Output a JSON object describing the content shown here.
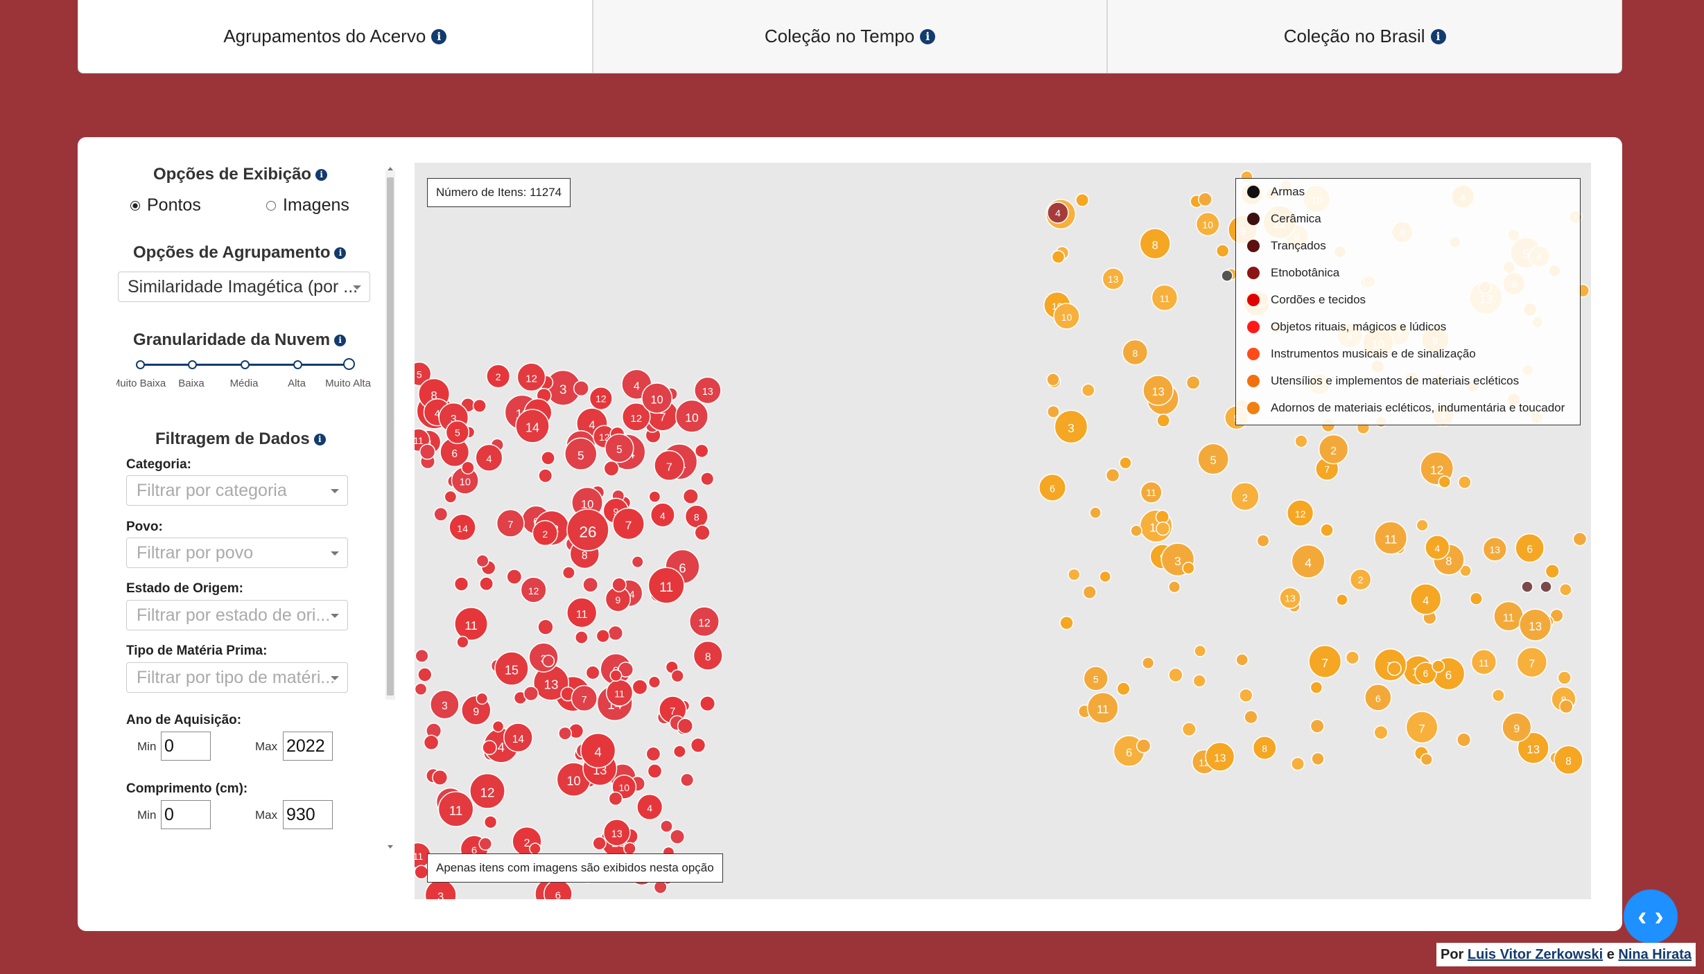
{
  "tabs": [
    {
      "label": "Agrupamentos do Acervo",
      "active": true
    },
    {
      "label": "Coleção no Tempo",
      "active": false
    },
    {
      "label": "Coleção no Brasil",
      "active": false
    }
  ],
  "sidebar": {
    "display_options": {
      "title": "Opções de Exibição",
      "points_label": "Pontos",
      "images_label": "Imagens",
      "selected": "Pontos"
    },
    "grouping": {
      "title": "Opções de Agrupamento",
      "value": "Similaridade Imagética (por ..."
    },
    "granularity": {
      "title": "Granularidade da Nuvem",
      "stops": [
        "Muito Baixa",
        "Baixa",
        "Média",
        "Alta",
        "Muito Alta"
      ],
      "selected": "Muito Alta"
    },
    "filters": {
      "title": "Filtragem de Dados",
      "categoria": {
        "label": "Categoria:",
        "placeholder": "Filtrar por categoria"
      },
      "povo": {
        "label": "Povo:",
        "placeholder": "Filtrar por povo"
      },
      "estado": {
        "label": "Estado de Origem:",
        "placeholder": "Filtrar por estado de ori..."
      },
      "materia": {
        "label": "Tipo de Matéria Prima:",
        "placeholder": "Filtrar por tipo de matéri..."
      },
      "ano": {
        "label": "Ano de Aquisição:",
        "min_label": "Min",
        "min": "0",
        "max_label": "Max",
        "max": "2022"
      },
      "comprimento": {
        "label": "Comprimento (cm):",
        "min_label": "Min",
        "min": "0",
        "max_label": "Max",
        "max": "930"
      }
    }
  },
  "map": {
    "item_count": "Número de Itens: 11274",
    "note": "Apenas itens com imagens são exibidos nesta opção",
    "legend": [
      {
        "label": "Armas",
        "color": "#111111"
      },
      {
        "label": "Cerâmica",
        "color": "#3d0f0f"
      },
      {
        "label": "Trançados",
        "color": "#5c1010"
      },
      {
        "label": "Etnobotânica",
        "color": "#8c1414"
      },
      {
        "label": "Cordões e tecidos",
        "color": "#e00000"
      },
      {
        "label": "Objetos rituais, mágicos e lúdicos",
        "color": "#ff1a1a"
      },
      {
        "label": "Instrumentos musicais e de sinalização",
        "color": "#ff4a1a"
      },
      {
        "label": "Utensílios e implementos de materiais ecléticos",
        "color": "#f07010"
      },
      {
        "label": "Adornos de materiais ecléticos, indumentária e toucador",
        "color": "#f08010"
      }
    ]
  },
  "footer": {
    "prefix": "Por",
    "author1": "Luis Vitor Zerkowski",
    "joiner": "e",
    "author2": "Nina Hirata"
  },
  "icons": {
    "fab": "code-toggle-icon",
    "info": "info-icon"
  }
}
